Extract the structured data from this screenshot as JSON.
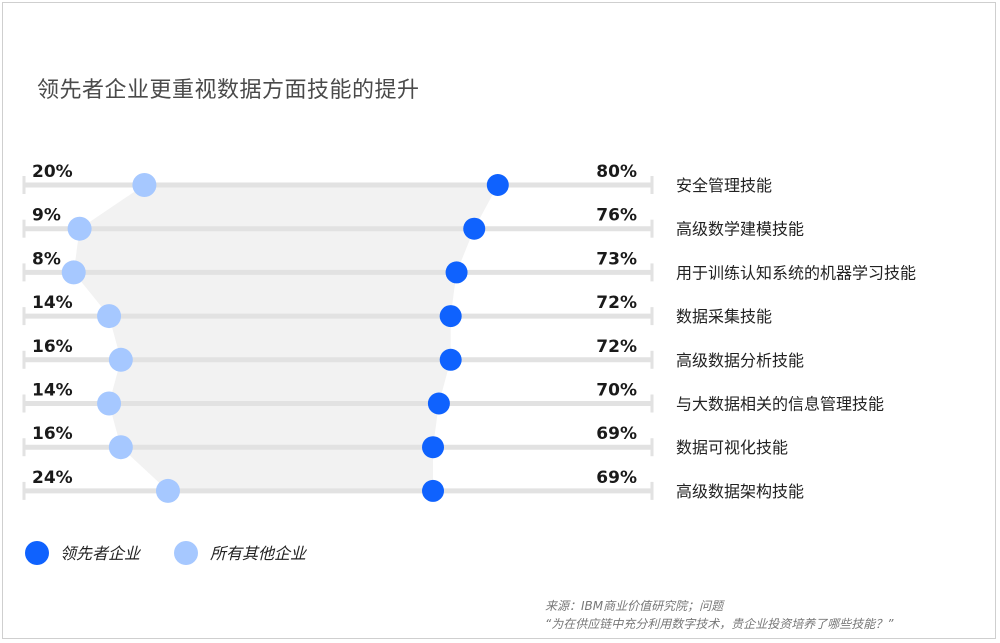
{
  "title": "领先者企业更重视数据方面技能的提升",
  "source": {
    "line1": "来源：IBM商业价值研究院；问题",
    "line2": "“为在供应链中充分利用数字技术，贵企业投资培养了哪些技能？”"
  },
  "colors": {
    "leaders": "#0f62fe",
    "others": "#a6c8ff",
    "track": "#e2e2e2",
    "band": "#f2f2f2"
  },
  "chart_data": {
    "type": "dot",
    "title": "领先者企业更重视数据方面技能的提升",
    "categories": [
      "安全管理技能",
      "高级数学建模技能",
      "用于训练认知系统的机器学习技能",
      "数据采集技能",
      "高级数据分析技能",
      "与大数据相关的信息管理技能",
      "数据可视化技能",
      "高级数据架构技能"
    ],
    "series": [
      {
        "name": "领先者企业",
        "values": [
          80,
          76,
          73,
          72,
          72,
          70,
          69,
          69
        ],
        "labels": [
          "80%",
          "76%",
          "73%",
          "72%",
          "72%",
          "70%",
          "69%",
          "69%"
        ]
      },
      {
        "name": "所有其他企业",
        "values": [
          20,
          9,
          8,
          14,
          16,
          14,
          16,
          24
        ],
        "labels": [
          "20%",
          "9%",
          "8%",
          "14%",
          "16%",
          "14%",
          "16%",
          "24%"
        ]
      }
    ],
    "unit": "%",
    "legend_position": "bottom-left",
    "grid": false
  }
}
